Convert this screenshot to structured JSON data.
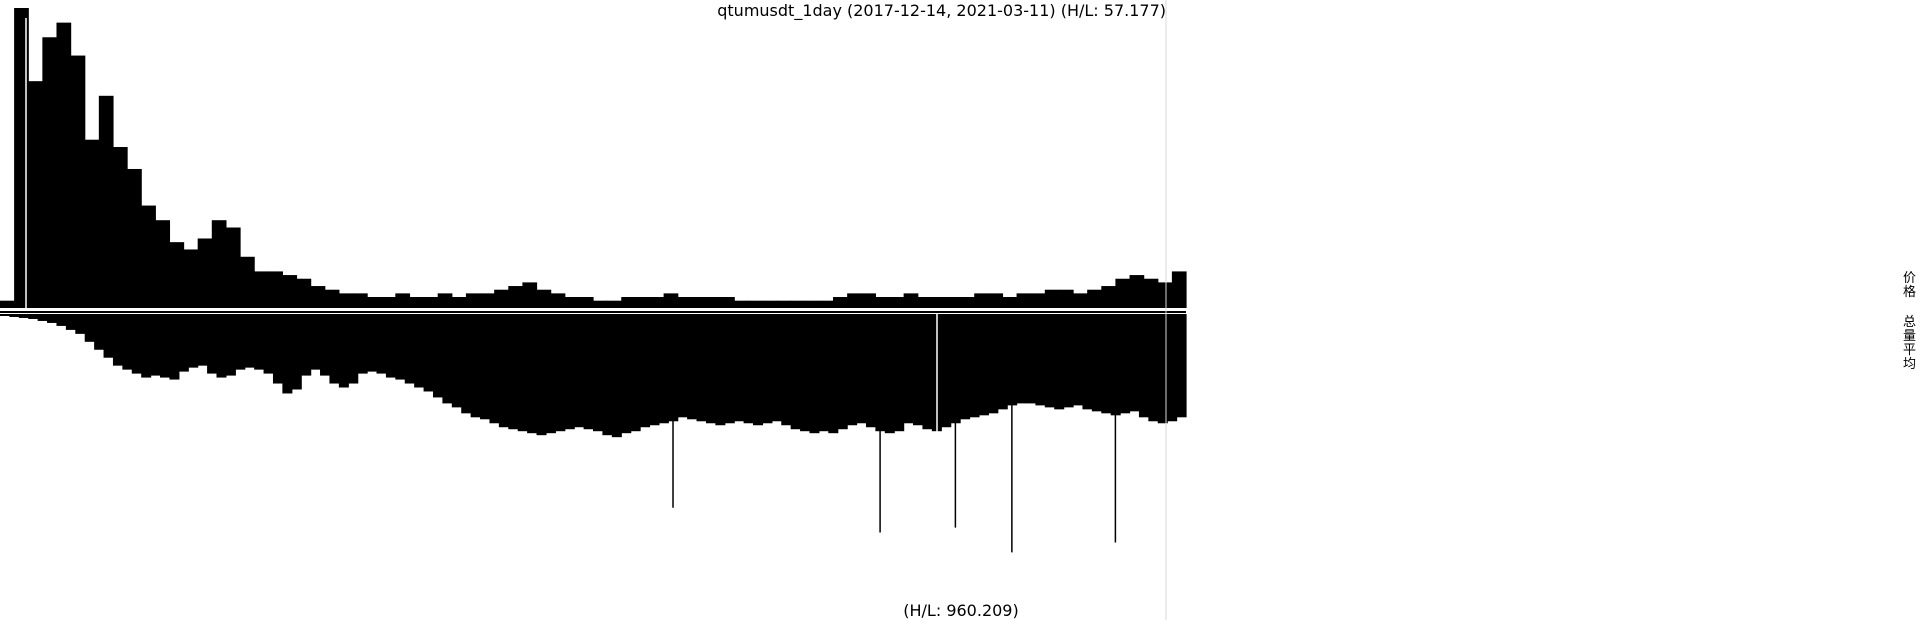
{
  "chart_data": {
    "type": "bar",
    "title": "qtumusdt_1day (2017-12-14, 2021-03-11) (H/L: 57.177)",
    "subtitle": "(H/L: 960.209)",
    "legend_side_labels": [
      "价格",
      "总量平均"
    ],
    "legend_placement": "right",
    "x_range": [
      "2017-12-14",
      "2021-03-11"
    ],
    "grid": false,
    "colors": {
      "bars": "#000000",
      "marker": "#d8d8d8",
      "background": "#ffffff"
    },
    "series": [
      {
        "name": "价格",
        "panel": "top",
        "y_ratio_range": [
          0,
          57.177
        ],
        "values": [
          2,
          82,
          62,
          74,
          78,
          69,
          46,
          58,
          44,
          38,
          28,
          24,
          18,
          16,
          19,
          24,
          22,
          14,
          10,
          10,
          9,
          8,
          6,
          5,
          4,
          4,
          3,
          3,
          4,
          3,
          3,
          4,
          3,
          4,
          4,
          5,
          6,
          7,
          5,
          4,
          3,
          3,
          2,
          2,
          3,
          3,
          3,
          4,
          3,
          3,
          3,
          3,
          2,
          2,
          2,
          2,
          2,
          2,
          2,
          3,
          4,
          4,
          3,
          3,
          4,
          3,
          3,
          3,
          3,
          4,
          4,
          3,
          4,
          4,
          5,
          5,
          4,
          5,
          6,
          8,
          9,
          8,
          7,
          10
        ]
      },
      {
        "name": "总量平均",
        "panel": "bottom",
        "y_ratio_range": [
          0,
          960.209
        ],
        "values": [
          2,
          3,
          4,
          5,
          7,
          9,
          12,
          16,
          20,
          28,
          36,
          44,
          52,
          56,
          60,
          64,
          62,
          64,
          66,
          58,
          54,
          52,
          60,
          64,
          62,
          56,
          54,
          56,
          60,
          70,
          80,
          76,
          62,
          56,
          62,
          70,
          74,
          70,
          60,
          58,
          60,
          64,
          66,
          70,
          74,
          78,
          84,
          90,
          94,
          100,
          104,
          106,
          110,
          114,
          116,
          118,
          120,
          122,
          120,
          118,
          116,
          114,
          116,
          118,
          122,
          124,
          120,
          118,
          114,
          112,
          110,
          108,
          104,
          106,
          108,
          110,
          112,
          110,
          108,
          110,
          112,
          110,
          108,
          112,
          116,
          118,
          120,
          118,
          120,
          116,
          112,
          110,
          114,
          118,
          120,
          118,
          110,
          112,
          116,
          118,
          114,
          110,
          106,
          104,
          102,
          100,
          96,
          92,
          90,
          90,
          92,
          94,
          96,
          94,
          92,
          96,
          98,
          100,
          102,
          100,
          98,
          104,
          108,
          110,
          108,
          104
        ]
      }
    ],
    "spikes": [
      {
        "series": "总量平均",
        "index": 107,
        "value": 240
      },
      {
        "series": "总量平均",
        "index": 118,
        "value": 230
      },
      {
        "series": "总量平均",
        "index": 93,
        "value": 220
      },
      {
        "series": "总量平均",
        "index": 101,
        "value": 215
      },
      {
        "series": "总量平均",
        "index": 71,
        "value": 195
      }
    ]
  }
}
